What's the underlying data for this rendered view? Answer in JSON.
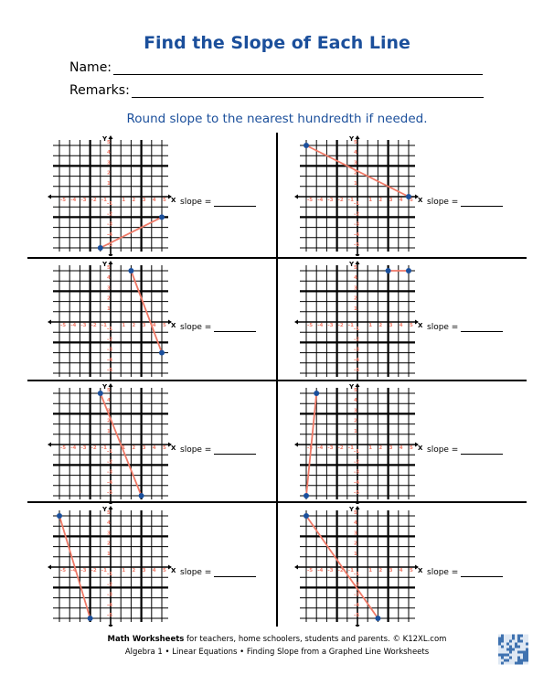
{
  "header": {
    "title": "Find the Slope of Each Line",
    "name_label": "Name:",
    "remarks_label": "Remarks:"
  },
  "instructions": "Round slope to the nearest hundredth if needed.",
  "colors": {
    "title": "#1b4f9b",
    "line": "#f07a68",
    "point": "#1a4f9c",
    "tick_label": "#f07a68"
  },
  "graph_axes": {
    "x_label": "X",
    "y_label": "Y",
    "x_ticks": [
      -5,
      -4,
      -3,
      -2,
      -1,
      1,
      2,
      3,
      4,
      5
    ],
    "y_ticks": [
      5,
      4,
      3,
      2,
      1,
      -1,
      -2,
      -3,
      -4,
      -5
    ],
    "xlim": [
      -5,
      5
    ],
    "ylim": [
      -5,
      5
    ]
  },
  "problems": [
    {
      "p1": [
        -1,
        -5
      ],
      "p2": [
        5,
        -2
      ],
      "answer_label": "slope ="
    },
    {
      "p1": [
        -5,
        5
      ],
      "p2": [
        5,
        0
      ],
      "answer_label": "slope ="
    },
    {
      "p1": [
        2,
        5
      ],
      "p2": [
        5,
        -3
      ],
      "answer_label": "slope ="
    },
    {
      "p1": [
        3,
        5
      ],
      "p2": [
        5,
        5
      ],
      "answer_label": "slope ="
    },
    {
      "p1": [
        -1,
        5
      ],
      "p2": [
        3,
        -5
      ],
      "answer_label": "slope ="
    },
    {
      "p1": [
        -4,
        5
      ],
      "p2": [
        -5,
        -5
      ],
      "answer_label": "slope ="
    },
    {
      "p1": [
        -5,
        5
      ],
      "p2": [
        -2,
        -5
      ],
      "answer_label": "slope ="
    },
    {
      "p1": [
        -5,
        5
      ],
      "p2": [
        2,
        -5
      ],
      "answer_label": "slope ="
    }
  ],
  "footer": {
    "brand": "Math Worksheets",
    "line1": " for teachers, home schoolers, students and parents. © K12XL.com",
    "line2": "Algebra 1 • Linear Equations • Finding Slope from a Graphed Line Worksheets",
    "qr_icon": "qr-code-icon"
  }
}
